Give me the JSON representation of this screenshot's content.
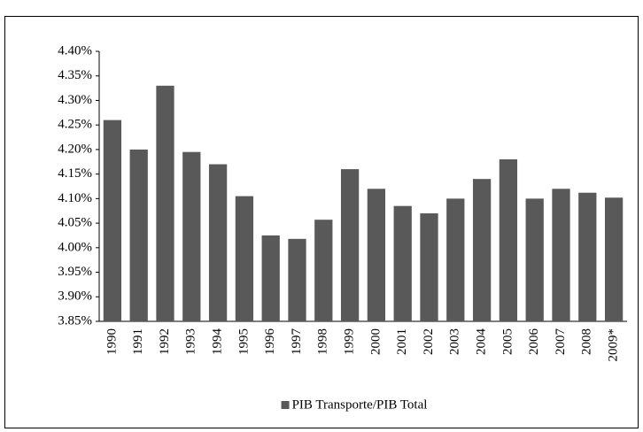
{
  "chart_data": {
    "type": "bar",
    "categories": [
      "1990",
      "1991",
      "1992",
      "1993",
      "1994",
      "1995",
      "1996",
      "1997",
      "1998",
      "1999",
      "2000",
      "2001",
      "2002",
      "2003",
      "2004",
      "2005",
      "2006",
      "2007",
      "2008",
      "2009*"
    ],
    "series": [
      {
        "name": "PIB Transporte/PIB Total",
        "color": "#595959",
        "values": [
          4.26,
          4.2,
          4.33,
          4.195,
          4.17,
          4.105,
          4.025,
          4.018,
          4.057,
          4.16,
          4.12,
          4.085,
          4.07,
          4.1,
          4.14,
          4.18,
          4.1,
          4.12,
          4.112,
          4.102
        ]
      }
    ],
    "ylim": [
      3.85,
      4.4
    ],
    "yticks": [
      {
        "value": 3.85,
        "label": "3.85%"
      },
      {
        "value": 3.9,
        "label": "3.90%"
      },
      {
        "value": 3.95,
        "label": "3.95%"
      },
      {
        "value": 4.0,
        "label": "4.00%"
      },
      {
        "value": 4.05,
        "label": "4.05%"
      },
      {
        "value": 4.1,
        "label": "4.10%"
      },
      {
        "value": 4.15,
        "label": "4.15%"
      },
      {
        "value": 4.2,
        "label": "4.20%"
      },
      {
        "value": 4.25,
        "label": "4.25%"
      },
      {
        "value": 4.3,
        "label": "4.30%"
      },
      {
        "value": 4.35,
        "label": "4.35%"
      },
      {
        "value": 4.4,
        "label": "4.40%"
      }
    ],
    "grid": false,
    "legend": "bottom"
  }
}
